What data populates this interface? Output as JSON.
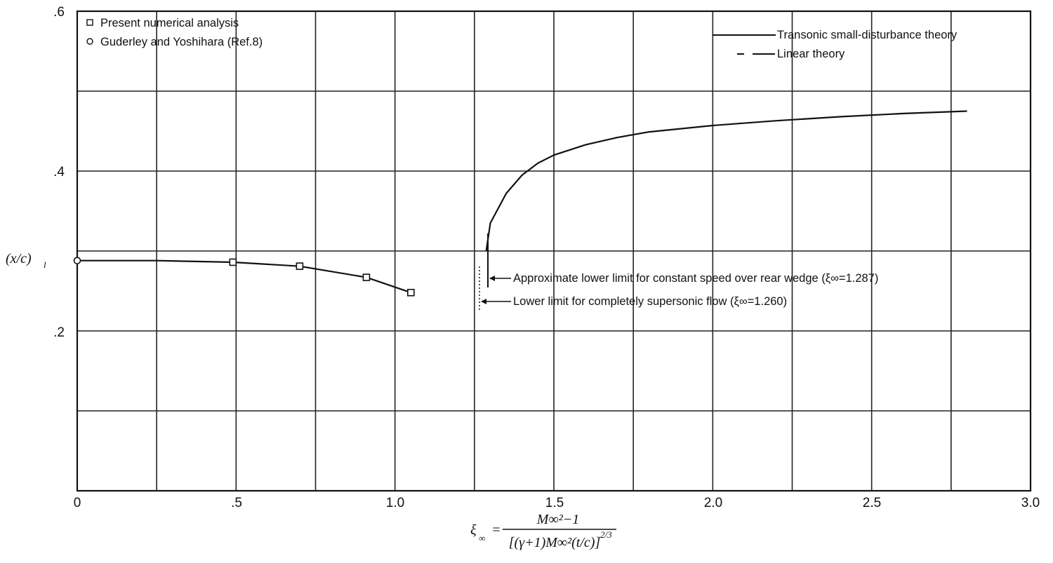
{
  "chart_data": {
    "type": "line",
    "xlim": [
      0,
      3.0
    ],
    "ylim": [
      0,
      0.6
    ],
    "grid": true,
    "legend_position": "top-left and top-right",
    "xticks": [
      "0",
      ".5",
      "1.0",
      "1.5",
      "2.0",
      "2.5",
      "3.0"
    ],
    "yticks": [
      ".2",
      ".4",
      ".6"
    ],
    "ylabel": "(x/c)",
    "ylabel_sub": "l",
    "xlabel": {
      "lhs": "ξ",
      "lhs_sub": "∞",
      "eq": "=",
      "num": "M∞²−1",
      "den": "[(γ+1)M∞²(t/c)]",
      "den_exp": "2/3"
    },
    "legend_left": [
      {
        "marker": "square",
        "label": "Present numerical analysis"
      },
      {
        "marker": "circle",
        "label": "Guderley and Yoshihara (Ref.8)"
      }
    ],
    "legend_right": [
      {
        "style": "solid",
        "label": "Transonic small-disturbance theory"
      },
      {
        "style": "dash",
        "label": "Linear theory"
      }
    ],
    "series": [
      {
        "name": "Present numerical analysis",
        "marker": "square",
        "points": [
          [
            0.49,
            0.286
          ],
          [
            0.7,
            0.281
          ],
          [
            0.91,
            0.267
          ],
          [
            1.05,
            0.248
          ]
        ]
      },
      {
        "name": "Guderley and Yoshihara (Ref.8)",
        "marker": "circle",
        "points": [
          [
            0.0,
            0.288
          ]
        ]
      },
      {
        "name": "Present numerical analysis",
        "style": "solid",
        "points": [
          [
            0.0,
            0.288
          ],
          [
            0.25,
            0.288
          ],
          [
            0.49,
            0.286
          ],
          [
            0.7,
            0.281
          ],
          [
            0.91,
            0.267
          ],
          [
            1.05,
            0.248
          ]
        ]
      },
      {
        "name": "Transonic small-disturbance theory",
        "style": "solid",
        "points": [
          [
            1.287,
            0.3
          ],
          [
            1.3,
            0.335
          ],
          [
            1.35,
            0.372
          ],
          [
            1.4,
            0.395
          ],
          [
            1.45,
            0.41
          ],
          [
            1.5,
            0.42
          ],
          [
            1.6,
            0.433
          ],
          [
            1.7,
            0.442
          ],
          [
            1.8,
            0.449
          ],
          [
            2.0,
            0.457
          ],
          [
            2.2,
            0.463
          ],
          [
            2.4,
            0.468
          ],
          [
            2.6,
            0.472
          ],
          [
            2.8,
            0.475
          ]
        ]
      }
    ],
    "annotations": [
      {
        "text": "Approximate lower limit for constant speed over rear wedge (ξ∞=1.287)",
        "x": 1.287,
        "y_at": 0.262
      },
      {
        "text": "Lower limit for completely supersonic flow (ξ∞=1.260)",
        "x": 1.26,
        "y_at": 0.236
      }
    ]
  }
}
